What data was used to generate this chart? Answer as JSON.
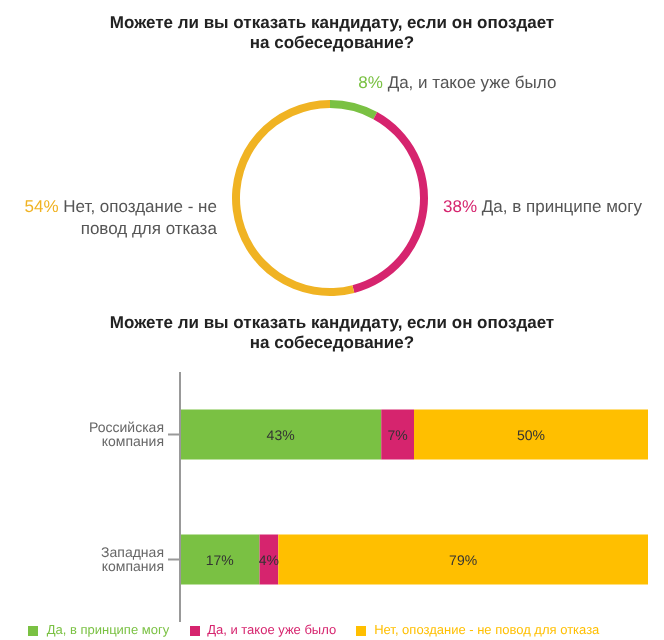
{
  "chart_data": [
    {
      "type": "donut",
      "title": "Можете ли вы отказать кандидату, если он опоздает на собеседование?",
      "categories": [
        "Да, и такое уже было",
        "Да, в принципе могу",
        "Нет, опоздание - не повод для отказа"
      ],
      "values": [
        8,
        38,
        54
      ],
      "colors": [
        "#7ac143",
        "#d6246e",
        "#f0b323"
      ],
      "value_labels": [
        "8%",
        "38%",
        "54%"
      ]
    },
    {
      "type": "bar",
      "orientation": "horizontal",
      "stacked": true,
      "title": "Можете ли вы отказать кандидату, если он опоздает на собеседование?",
      "categories": [
        "Российская компания",
        "Западная компания"
      ],
      "tick_labels": "y",
      "legend": "bottom",
      "series": [
        {
          "name": "Да, в принципе могу",
          "color": "#7ac143",
          "values": [
            43,
            17
          ],
          "value_labels": [
            "43%",
            "17%"
          ]
        },
        {
          "name": "Да, и такое уже было",
          "color": "#d6246e",
          "values": [
            7,
            4
          ],
          "value_labels": [
            "7%",
            "4%"
          ]
        },
        {
          "name": "Нет, опоздание - не повод для отказа",
          "color": "#ffbf00",
          "values": [
            50,
            79
          ],
          "value_labels": [
            "50%",
            "79%"
          ]
        }
      ]
    }
  ]
}
